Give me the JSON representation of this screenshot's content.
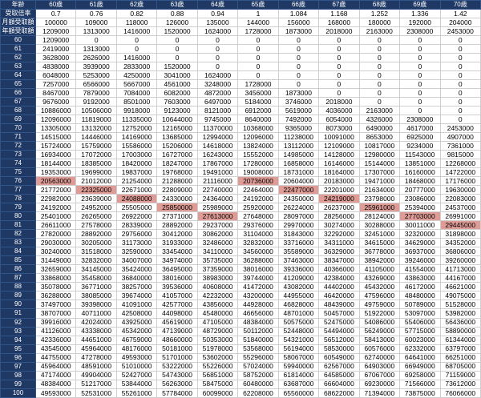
{
  "chart_data": {
    "type": "table",
    "corner": {
      "age_label": "年齢",
      "rate_label": "受取倍率",
      "monthly_label": "月額受取額",
      "annual_label": "年額受取額"
    },
    "age_columns": [
      "60歳",
      "61歳",
      "62歳",
      "63歳",
      "64歳",
      "65歳",
      "66歳",
      "67歳",
      "68歳",
      "69歳",
      "70歳"
    ],
    "rates": [
      "0.7",
      "0.76",
      "0.82",
      "0.88",
      "0.94",
      "1",
      "1.084",
      "1.168",
      "1.252",
      "1.336",
      "1.42"
    ],
    "monthly_amounts": [
      "100000",
      "109000",
      "118000",
      "126000",
      "135000",
      "144000",
      "156000",
      "168000",
      "180000",
      "192000",
      "204000"
    ],
    "annual_amounts": [
      "1209000",
      "1313000",
      "1416000",
      "1520000",
      "1624000",
      "1728000",
      "1873000",
      "2018000",
      "2163000",
      "2308000",
      "2453000"
    ],
    "rows": [
      {
        "age": "60",
        "values": [
          1209000,
          0,
          0,
          0,
          0,
          0,
          0,
          0,
          0,
          0,
          0
        ]
      },
      {
        "age": "61",
        "values": [
          2419000,
          1313000,
          0,
          0,
          0,
          0,
          0,
          0,
          0,
          0,
          0
        ]
      },
      {
        "age": "62",
        "values": [
          3628000,
          2626000,
          1416000,
          0,
          0,
          0,
          0,
          0,
          0,
          0,
          0
        ]
      },
      {
        "age": "63",
        "values": [
          4838000,
          3939000,
          2833000,
          1520000,
          0,
          0,
          0,
          0,
          0,
          0,
          0
        ]
      },
      {
        "age": "64",
        "values": [
          6048000,
          5253000,
          4250000,
          3041000,
          1624000,
          0,
          0,
          0,
          0,
          0,
          0
        ]
      },
      {
        "age": "65",
        "values": [
          7257000,
          6566000,
          5667000,
          4561000,
          3248000,
          1728000,
          0,
          0,
          0,
          0,
          0
        ]
      },
      {
        "age": "66",
        "values": [
          8467000,
          7879000,
          7084000,
          6082000,
          4872000,
          3456000,
          1873000,
          0,
          0,
          0,
          0
        ]
      },
      {
        "age": "67",
        "values": [
          9676000,
          9192000,
          8501000,
          7603000,
          6497000,
          5184000,
          3746000,
          2018000,
          0,
          0,
          0
        ]
      },
      {
        "age": "68",
        "values": [
          10886000,
          10506000,
          9918000,
          9123000,
          8121000,
          6912000,
          5619000,
          4036000,
          2163000,
          0,
          0
        ]
      },
      {
        "age": "69",
        "values": [
          12096000,
          11819000,
          11335000,
          10644000,
          9745000,
          8640000,
          7492000,
          6054000,
          4326000,
          2308000,
          0
        ]
      },
      {
        "age": "70",
        "values": [
          13305000,
          13132000,
          12752000,
          12165000,
          11370000,
          10368000,
          9365000,
          8073000,
          6490000,
          4617000,
          2453000
        ]
      },
      {
        "age": "71",
        "values": [
          14515000,
          14446000,
          14169000,
          13685000,
          12994000,
          12096000,
          11238000,
          10091000,
          8653000,
          6925000,
          4907000
        ]
      },
      {
        "age": "72",
        "values": [
          15724000,
          15759000,
          15586000,
          15206000,
          14618000,
          13824000,
          13112000,
          12109000,
          10817000,
          9234000,
          7361000
        ]
      },
      {
        "age": "73",
        "values": [
          16934000,
          17072000,
          17003000,
          16727000,
          16243000,
          15552000,
          14985000,
          14128000,
          12980000,
          11543000,
          9815000
        ]
      },
      {
        "age": "74",
        "values": [
          18144000,
          18385000,
          18420000,
          18247000,
          17867000,
          17280000,
          16858000,
          16146000,
          15144000,
          13851000,
          12268000
        ]
      },
      {
        "age": "75",
        "values": [
          19353000,
          19699000,
          19837000,
          19768000,
          19491000,
          19008000,
          18731000,
          18164000,
          17307000,
          16160000,
          14722000
        ]
      },
      {
        "age": "76",
        "values": [
          20563000,
          21012000,
          21254000,
          21288000,
          21116000,
          20736000,
          20604000,
          20183000,
          19471000,
          18468000,
          17176000
        ]
      },
      {
        "age": "77",
        "values": [
          21772000,
          22325000,
          22671000,
          22809000,
          22740000,
          22464000,
          22477000,
          22201000,
          21634000,
          20777000,
          19630000
        ]
      },
      {
        "age": "78",
        "values": [
          22982000,
          23639000,
          24088000,
          24330000,
          24364000,
          24192000,
          24350000,
          24219000,
          23798000,
          23086000,
          22083000
        ]
      },
      {
        "age": "79",
        "values": [
          24192000,
          24952000,
          25505000,
          25850000,
          25989000,
          25920000,
          26224000,
          26237000,
          25961000,
          25394000,
          24537000
        ]
      },
      {
        "age": "80",
        "values": [
          25401000,
          26265000,
          26922000,
          27371000,
          27613000,
          27648000,
          28097000,
          28256000,
          28124000,
          27703000,
          26991000
        ]
      },
      {
        "age": "81",
        "values": [
          26611000,
          27578000,
          28339000,
          28892000,
          29237000,
          29376000,
          29970000,
          30274000,
          30288000,
          30011000,
          29445000
        ]
      },
      {
        "age": "82",
        "values": [
          27820000,
          28892000,
          29756000,
          30412000,
          30862000,
          31104000,
          31843000,
          32292000,
          32451000,
          32320000,
          31898000
        ]
      },
      {
        "age": "83",
        "values": [
          29030000,
          30205000,
          31173000,
          31933000,
          32486000,
          32832000,
          33716000,
          34311000,
          34615000,
          34629000,
          34352000
        ]
      },
      {
        "age": "84",
        "values": [
          30240000,
          31518000,
          32590000,
          33454000,
          34110000,
          34560000,
          35589000,
          36329000,
          36778000,
          36937000,
          36806000
        ]
      },
      {
        "age": "85",
        "values": [
          31449000,
          32832000,
          34007000,
          34974000,
          35735000,
          36288000,
          37463000,
          38347000,
          38942000,
          39246000,
          39260000
        ]
      },
      {
        "age": "86",
        "values": [
          32659000,
          34145000,
          35424000,
          36495000,
          37359000,
          38016000,
          39336000,
          40366000,
          41105000,
          41554000,
          41713000
        ]
      },
      {
        "age": "87",
        "values": [
          33868000,
          35458000,
          36840000,
          38016000,
          38983000,
          39744000,
          41209000,
          42384000,
          43269000,
          43863000,
          44167000
        ]
      },
      {
        "age": "88",
        "values": [
          35078000,
          36771000,
          38257000,
          39536000,
          40608000,
          41472000,
          43082000,
          44402000,
          45432000,
          46172000,
          46621000
        ]
      },
      {
        "age": "89",
        "values": [
          36288000,
          38085000,
          39674000,
          41057000,
          42232000,
          43200000,
          44955000,
          46420000,
          47596000,
          48480000,
          49075000
        ]
      },
      {
        "age": "90",
        "values": [
          37497000,
          39398000,
          41091000,
          42577000,
          43856000,
          44928000,
          46828000,
          48439000,
          49759000,
          50789000,
          51528000
        ]
      },
      {
        "age": "91",
        "values": [
          38707000,
          40711000,
          42508000,
          44098000,
          45480000,
          46656000,
          48701000,
          50457000,
          51922000,
          53097000,
          53982000
        ]
      },
      {
        "age": "92",
        "values": [
          39916000,
          42024000,
          43925000,
          45619000,
          47105000,
          48384000,
          50575000,
          52475000,
          54086000,
          55406000,
          56436000
        ]
      },
      {
        "age": "93",
        "values": [
          41126000,
          43338000,
          45342000,
          47139000,
          48729000,
          50112000,
          52448000,
          54494000,
          56249000,
          57715000,
          58890000
        ]
      },
      {
        "age": "94",
        "values": [
          42336000,
          44651000,
          46759000,
          48660000,
          50353000,
          51840000,
          54321000,
          56512000,
          58413000,
          60023000,
          61344000
        ]
      },
      {
        "age": "95",
        "values": [
          43545000,
          45964000,
          48176000,
          50181000,
          51978000,
          53568000,
          56194000,
          58530000,
          60576000,
          62332000,
          63797000
        ]
      },
      {
        "age": "96",
        "values": [
          44755000,
          47278000,
          49593000,
          51701000,
          53602000,
          55296000,
          58067000,
          60549000,
          62740000,
          64641000,
          66251000
        ]
      },
      {
        "age": "97",
        "values": [
          45964000,
          48591000,
          51010000,
          53222000,
          55226000,
          57024000,
          59940000,
          62567000,
          64903000,
          66949000,
          68705000
        ]
      },
      {
        "age": "98",
        "values": [
          47174000,
          49904000,
          52427000,
          54743000,
          56851000,
          58752000,
          61814000,
          64585000,
          67067000,
          69258000,
          71159000
        ]
      },
      {
        "age": "99",
        "values": [
          48384000,
          51217000,
          53844000,
          56263000,
          58475000,
          60480000,
          63687000,
          66604000,
          69230000,
          71566000,
          73612000
        ]
      },
      {
        "age": "100",
        "values": [
          49593000,
          52531000,
          55261000,
          57784000,
          60099000,
          62208000,
          65560000,
          68622000,
          71394000,
          73875000,
          76066000
        ]
      }
    ],
    "highlights": [
      {
        "age": "76",
        "col": 0
      },
      {
        "age": "76",
        "col": 5
      },
      {
        "age": "77",
        "col": 1
      },
      {
        "age": "77",
        "col": 6
      },
      {
        "age": "78",
        "col": 2
      },
      {
        "age": "78",
        "col": 7
      },
      {
        "age": "79",
        "col": 3
      },
      {
        "age": "79",
        "col": 8
      },
      {
        "age": "80",
        "col": 4
      },
      {
        "age": "80",
        "col": 9
      },
      {
        "age": "81",
        "col": 10
      }
    ]
  },
  "colors": {
    "header_bg": "#1f3864",
    "header_text": "#ffffff",
    "highlight_bg": "#df9c96",
    "grid_line": "#d0cece"
  }
}
